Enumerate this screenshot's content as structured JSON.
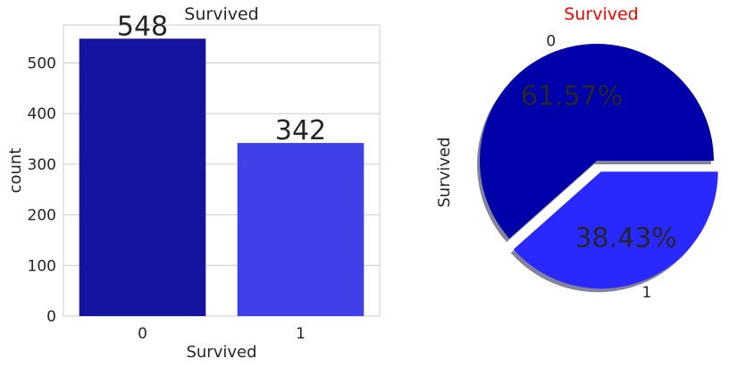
{
  "chart_data": [
    {
      "type": "bar",
      "title": "Survived",
      "xlabel": "Survived",
      "ylabel": "count",
      "categories": [
        "0",
        "1"
      ],
      "values": [
        548,
        342
      ],
      "data_labels": [
        "548",
        "342"
      ],
      "ylim": [
        0,
        575
      ],
      "yticks": [
        0,
        100,
        200,
        300,
        400,
        500
      ],
      "grid": true,
      "colors": [
        "#1414a0",
        "#4040e8"
      ]
    },
    {
      "type": "pie",
      "title": "Survived",
      "ylabel": "Survived",
      "labels": [
        "0",
        "1"
      ],
      "values": [
        61.57,
        38.43
      ],
      "pct_labels": [
        "61.57%",
        "38.43%"
      ],
      "explode": [
        0,
        0.1
      ],
      "shadow": true,
      "colors": [
        "#0000aa",
        "#2828ff"
      ],
      "title_color": "#ff0000"
    }
  ]
}
